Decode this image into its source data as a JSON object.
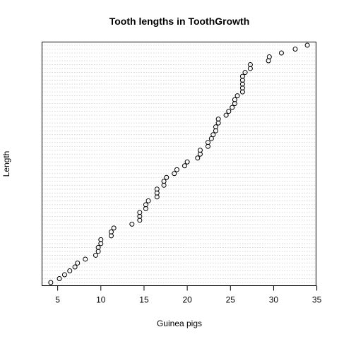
{
  "chart_data": {
    "type": "scatter",
    "title": "Tooth lengths in ToothGrowth",
    "xlabel": "Guinea pigs",
    "ylabel": "Length",
    "xlim": [
      3.19,
      34.91
    ],
    "xticks": [
      5,
      10,
      15,
      20,
      25,
      30,
      35
    ],
    "grid": "dotted horizontal line per point",
    "y_axis": "none",
    "x": [
      4.2,
      5.2,
      5.8,
      6.4,
      7.0,
      7.3,
      8.2,
      9.4,
      9.7,
      9.7,
      10.0,
      10.0,
      11.2,
      11.2,
      11.5,
      13.6,
      14.5,
      14.5,
      14.5,
      15.2,
      15.2,
      15.5,
      16.5,
      16.5,
      16.5,
      17.3,
      17.3,
      17.6,
      18.5,
      18.8,
      19.7,
      20.0,
      21.2,
      21.5,
      21.5,
      22.4,
      22.4,
      22.8,
      23.0,
      23.3,
      23.3,
      23.6,
      23.6,
      24.5,
      24.8,
      25.2,
      25.5,
      25.5,
      25.8,
      26.4,
      26.4,
      26.4,
      26.4,
      26.4,
      26.7,
      27.3,
      27.3,
      29.4,
      29.5,
      30.9,
      32.5,
      33.9
    ],
    "y": [
      1,
      2,
      3,
      4,
      5,
      6,
      7,
      8,
      9,
      10,
      11,
      12,
      13,
      14,
      15,
      16,
      17,
      18,
      19,
      20,
      21,
      22,
      23,
      24,
      25,
      26,
      27,
      28,
      29,
      30,
      31,
      32,
      33,
      34,
      35,
      36,
      37,
      38,
      39,
      40,
      41,
      42,
      43,
      44,
      45,
      46,
      47,
      48,
      49,
      50,
      51,
      52,
      53,
      54,
      55,
      56,
      57,
      58,
      59,
      60,
      61,
      62
    ]
  }
}
